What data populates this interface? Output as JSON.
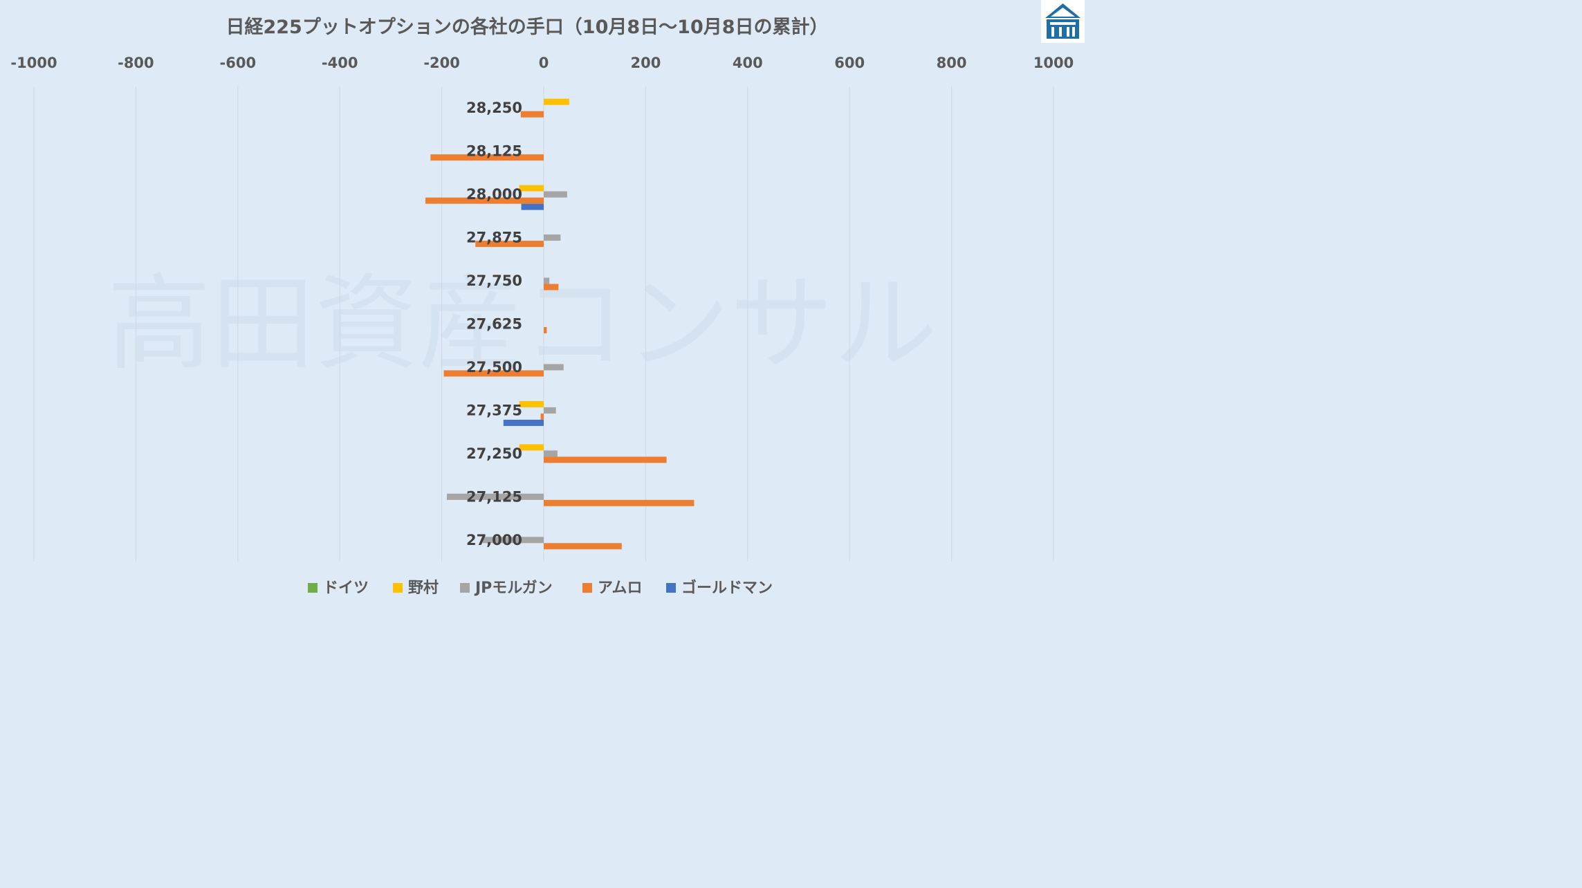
{
  "watermark": "高田資産コンサル",
  "logo_icon": "building-logo-icon",
  "colors": {
    "background": "#deeaf6",
    "grid": "#cfd8e2",
    "logo": "#1d6fa5"
  },
  "chart_data": {
    "type": "bar",
    "orientation": "horizontal",
    "title": "日経225プットオプションの各社の手口（10月8日～10月8日の累計）",
    "xlim": [
      -1000,
      1000
    ],
    "x_ticks": [
      -1000,
      -800,
      -600,
      -400,
      -200,
      0,
      200,
      400,
      600,
      800,
      1000
    ],
    "x_tick_labels": [
      "-1000",
      "-800",
      "-600",
      "-400",
      "-200",
      "0",
      "200",
      "400",
      "600",
      "800",
      "1000"
    ],
    "x_axis_position": "top",
    "grid": "vertical",
    "legend_position": "bottom",
    "categories": [
      "28,250",
      "28,125",
      "28,000",
      "27,875",
      "27,750",
      "27,625",
      "27,500",
      "27,375",
      "27,250",
      "27,125",
      "27,000"
    ],
    "series": [
      {
        "name": "ドイツ",
        "color": "#70ad47",
        "values": [
          0,
          0,
          0,
          0,
          0,
          0,
          0,
          0,
          0,
          0,
          0
        ]
      },
      {
        "name": "野村",
        "color": "#ffc000",
        "values": [
          50,
          0,
          -48,
          0,
          0,
          0,
          0,
          -48,
          -48,
          0,
          0
        ]
      },
      {
        "name": "JPモルガン",
        "color": "#a5a5a5",
        "values": [
          0,
          0,
          46,
          33,
          11,
          0,
          39,
          24,
          27,
          -190,
          -120
        ]
      },
      {
        "name": "アムロ",
        "color": "#ed7d31",
        "values": [
          -45,
          -222,
          -232,
          -134,
          29,
          6,
          -196,
          -6,
          241,
          295,
          153
        ]
      },
      {
        "name": "ゴールドマン",
        "color": "#4472c4",
        "values": [
          0,
          0,
          -44,
          0,
          0,
          0,
          0,
          -79,
          0,
          0,
          0
        ]
      }
    ]
  }
}
